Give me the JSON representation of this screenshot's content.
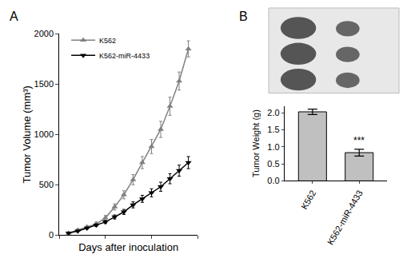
{
  "chart_data": [
    {
      "type": "line",
      "title": "A",
      "x": [
        1,
        2,
        3,
        4,
        5,
        6,
        7,
        8,
        9,
        10,
        11,
        12,
        13,
        14
      ],
      "series": [
        {
          "name": "K562",
          "color": "#808080",
          "marker": "triangle-up",
          "values": [
            20,
            50,
            80,
            110,
            170,
            280,
            400,
            550,
            720,
            880,
            1050,
            1280,
            1530,
            1850
          ],
          "errors": [
            5,
            10,
            15,
            20,
            25,
            30,
            40,
            50,
            60,
            70,
            80,
            90,
            90,
            80
          ]
        },
        {
          "name": "K562-miR-4433",
          "color": "#000000",
          "marker": "triangle-down",
          "values": [
            20,
            40,
            70,
            100,
            130,
            180,
            230,
            300,
            360,
            420,
            480,
            560,
            640,
            720
          ],
          "errors": [
            5,
            8,
            10,
            12,
            15,
            20,
            25,
            30,
            35,
            40,
            45,
            50,
            55,
            60
          ]
        }
      ],
      "x_label": "Days after inoculation",
      "y_label": "Tumor Volume (mm³)",
      "xlim": [
        0,
        15
      ],
      "xticks": [
        0,
        5,
        10,
        15
      ],
      "ylim": [
        0,
        2000
      ],
      "yticks": [
        0,
        500,
        1000,
        1500,
        2000
      ],
      "tick_labels": "y",
      "legend": "upper left",
      "grid": false
    },
    {
      "type": "bar",
      "title": "B",
      "categories": [
        "K562",
        "K562-miR-4433"
      ],
      "values": [
        2.03,
        0.83
      ],
      "errors": [
        0.08,
        0.1
      ],
      "color": "#c0c0c0",
      "y_label": "Tumor Weight (g)",
      "ylim": [
        0,
        2.2
      ],
      "yticks": [
        {
          "value": 0,
          "label": "0.0"
        },
        {
          "value": 0.5,
          "label": "0.5"
        },
        {
          "value": 1,
          "label": "1.0"
        },
        {
          "value": 1.5,
          "label": "1.5"
        },
        {
          "value": 2,
          "label": "2.0"
        }
      ],
      "annotations": [
        {
          "text": "***",
          "category": "K562-miR-4433"
        }
      ],
      "grid": false
    }
  ]
}
